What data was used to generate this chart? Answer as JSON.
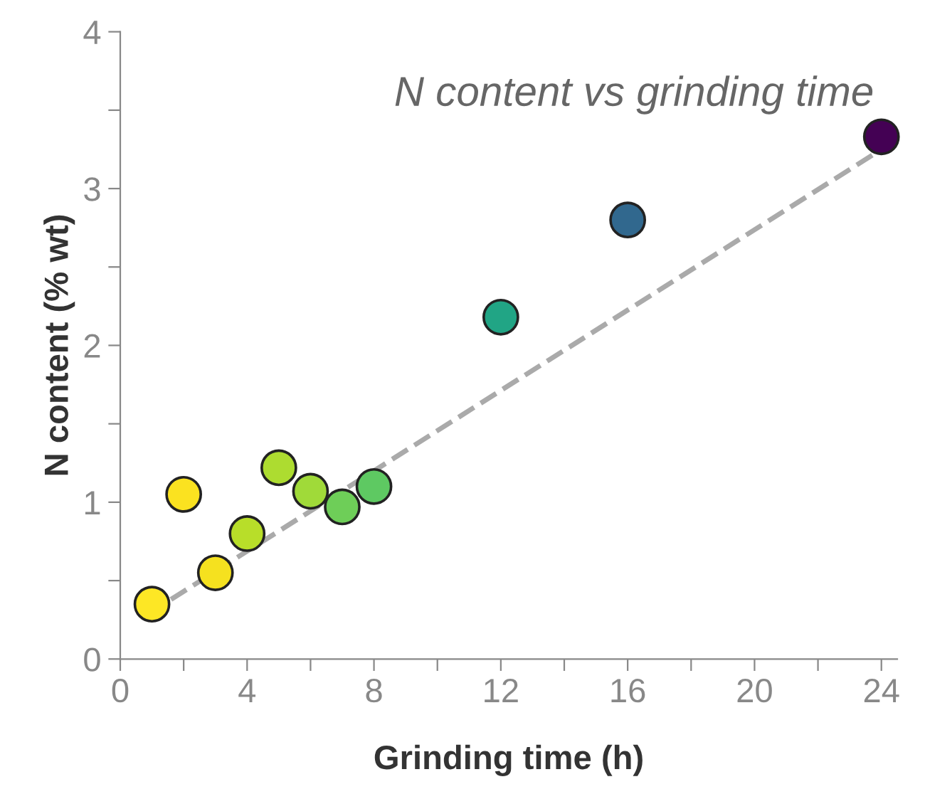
{
  "chart_data": {
    "type": "scatter",
    "title": "N content vs grinding time",
    "xlabel": "Grinding time (h)",
    "ylabel": "N content (% wt)",
    "xlim": [
      0,
      24.5
    ],
    "ylim": [
      0,
      4
    ],
    "xticks": [
      0,
      {
        "value": 2,
        "label": null
      },
      4,
      {
        "value": 6,
        "label": null
      },
      8,
      {
        "value": 10,
        "label": null
      },
      12,
      {
        "value": 14,
        "label": null
      },
      16,
      {
        "value": 18,
        "label": null
      },
      20,
      {
        "value": 22,
        "label": null
      },
      24
    ],
    "yticks": [
      0,
      {
        "value": 0.5,
        "label": null
      },
      1,
      {
        "value": 1.5,
        "label": null
      },
      2,
      {
        "value": 2.5,
        "label": null
      },
      3,
      {
        "value": 3.5,
        "label": null
      },
      4
    ],
    "grid": false,
    "series": [
      {
        "marker": "circle",
        "x": [
          1,
          2,
          3,
          4,
          5,
          6,
          7,
          8,
          12,
          16,
          24
        ],
        "values": [
          0.35,
          1.05,
          0.55,
          0.8,
          1.22,
          1.07,
          0.97,
          1.1,
          2.18,
          2.8,
          3.33
        ],
        "colors": [
          "#fde725",
          "#fbe220",
          "#f5e11f",
          "#b8de29",
          "#addc30",
          "#a0da39",
          "#6ece58",
          "#5ec962",
          "#21a585",
          "#31688e",
          "#440154"
        ]
      },
      {
        "type": "line",
        "marker": "none",
        "x": [
          1.6,
          24
        ],
        "values": [
          0.38,
          3.25
        ],
        "color": "#aaaaaa",
        "line_style": "dashed"
      }
    ]
  }
}
